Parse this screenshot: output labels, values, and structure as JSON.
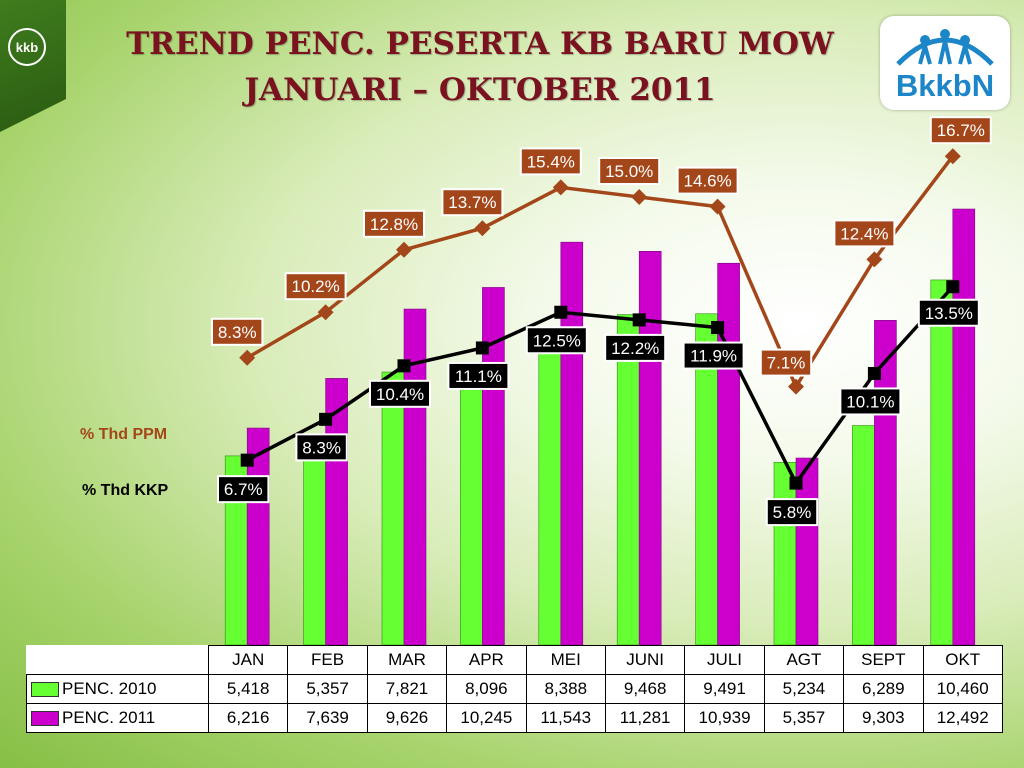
{
  "title_line1": "TREND PENC. PESERTA KB BARU MOW",
  "title_line2": "JANUARI – OKTOBER 2011",
  "corner_logo_text": "kkb",
  "logo_text": "BkkbN",
  "colors": {
    "penc_2010": "#66ff33",
    "penc_2011": "#cc00cc",
    "ppm_line": "#a3471a",
    "kkp_line": "#000000"
  },
  "chart_data": {
    "type": "bar",
    "categories": [
      "JAN",
      "FEB",
      "MAR",
      "APR",
      "MEI",
      "JUNI",
      "JULI",
      "AGT",
      "SEPT",
      "OKT"
    ],
    "series": [
      {
        "name": "PENC. 2010",
        "type": "bar",
        "values": [
          5418,
          5357,
          7821,
          8096,
          8388,
          9468,
          9491,
          5234,
          6289,
          10460
        ],
        "labels": [
          "5,418",
          "5,357",
          "7,821",
          "8,096",
          "8,388",
          "9,468",
          "9,491",
          "5,234",
          "6,289",
          "10,460"
        ]
      },
      {
        "name": "PENC. 2011",
        "type": "bar",
        "values": [
          6216,
          7639,
          9626,
          10245,
          11543,
          11281,
          10939,
          5357,
          9303,
          12492
        ],
        "labels": [
          "6,216",
          "7,639",
          "9,626",
          "10,245",
          "11,543",
          "11,281",
          "10,939",
          "5,357",
          "9,303",
          "12,492"
        ]
      },
      {
        "name": "% Thd PPM",
        "type": "line",
        "values": [
          8.3,
          10.2,
          12.8,
          13.7,
          15.4,
          15.0,
          14.6,
          7.1,
          12.4,
          16.7
        ],
        "labels": [
          "8.3%",
          "10.2%",
          "12.8%",
          "13.7%",
          "15.4%",
          "15.0%",
          "14.6%",
          "7.1%",
          "12.4%",
          "16.7%"
        ]
      },
      {
        "name": "% Thd KKP",
        "type": "line",
        "values": [
          6.7,
          8.3,
          10.4,
          11.1,
          12.5,
          12.2,
          11.9,
          5.8,
          10.1,
          13.5
        ],
        "labels": [
          "6.7%",
          "8.3%",
          "10.4%",
          "11.1%",
          "12.5%",
          "12.2%",
          "11.9%",
          "5.8%",
          "10.1%",
          "13.5%"
        ]
      }
    ],
    "legend_placement": "table-bottom",
    "grid": false
  }
}
